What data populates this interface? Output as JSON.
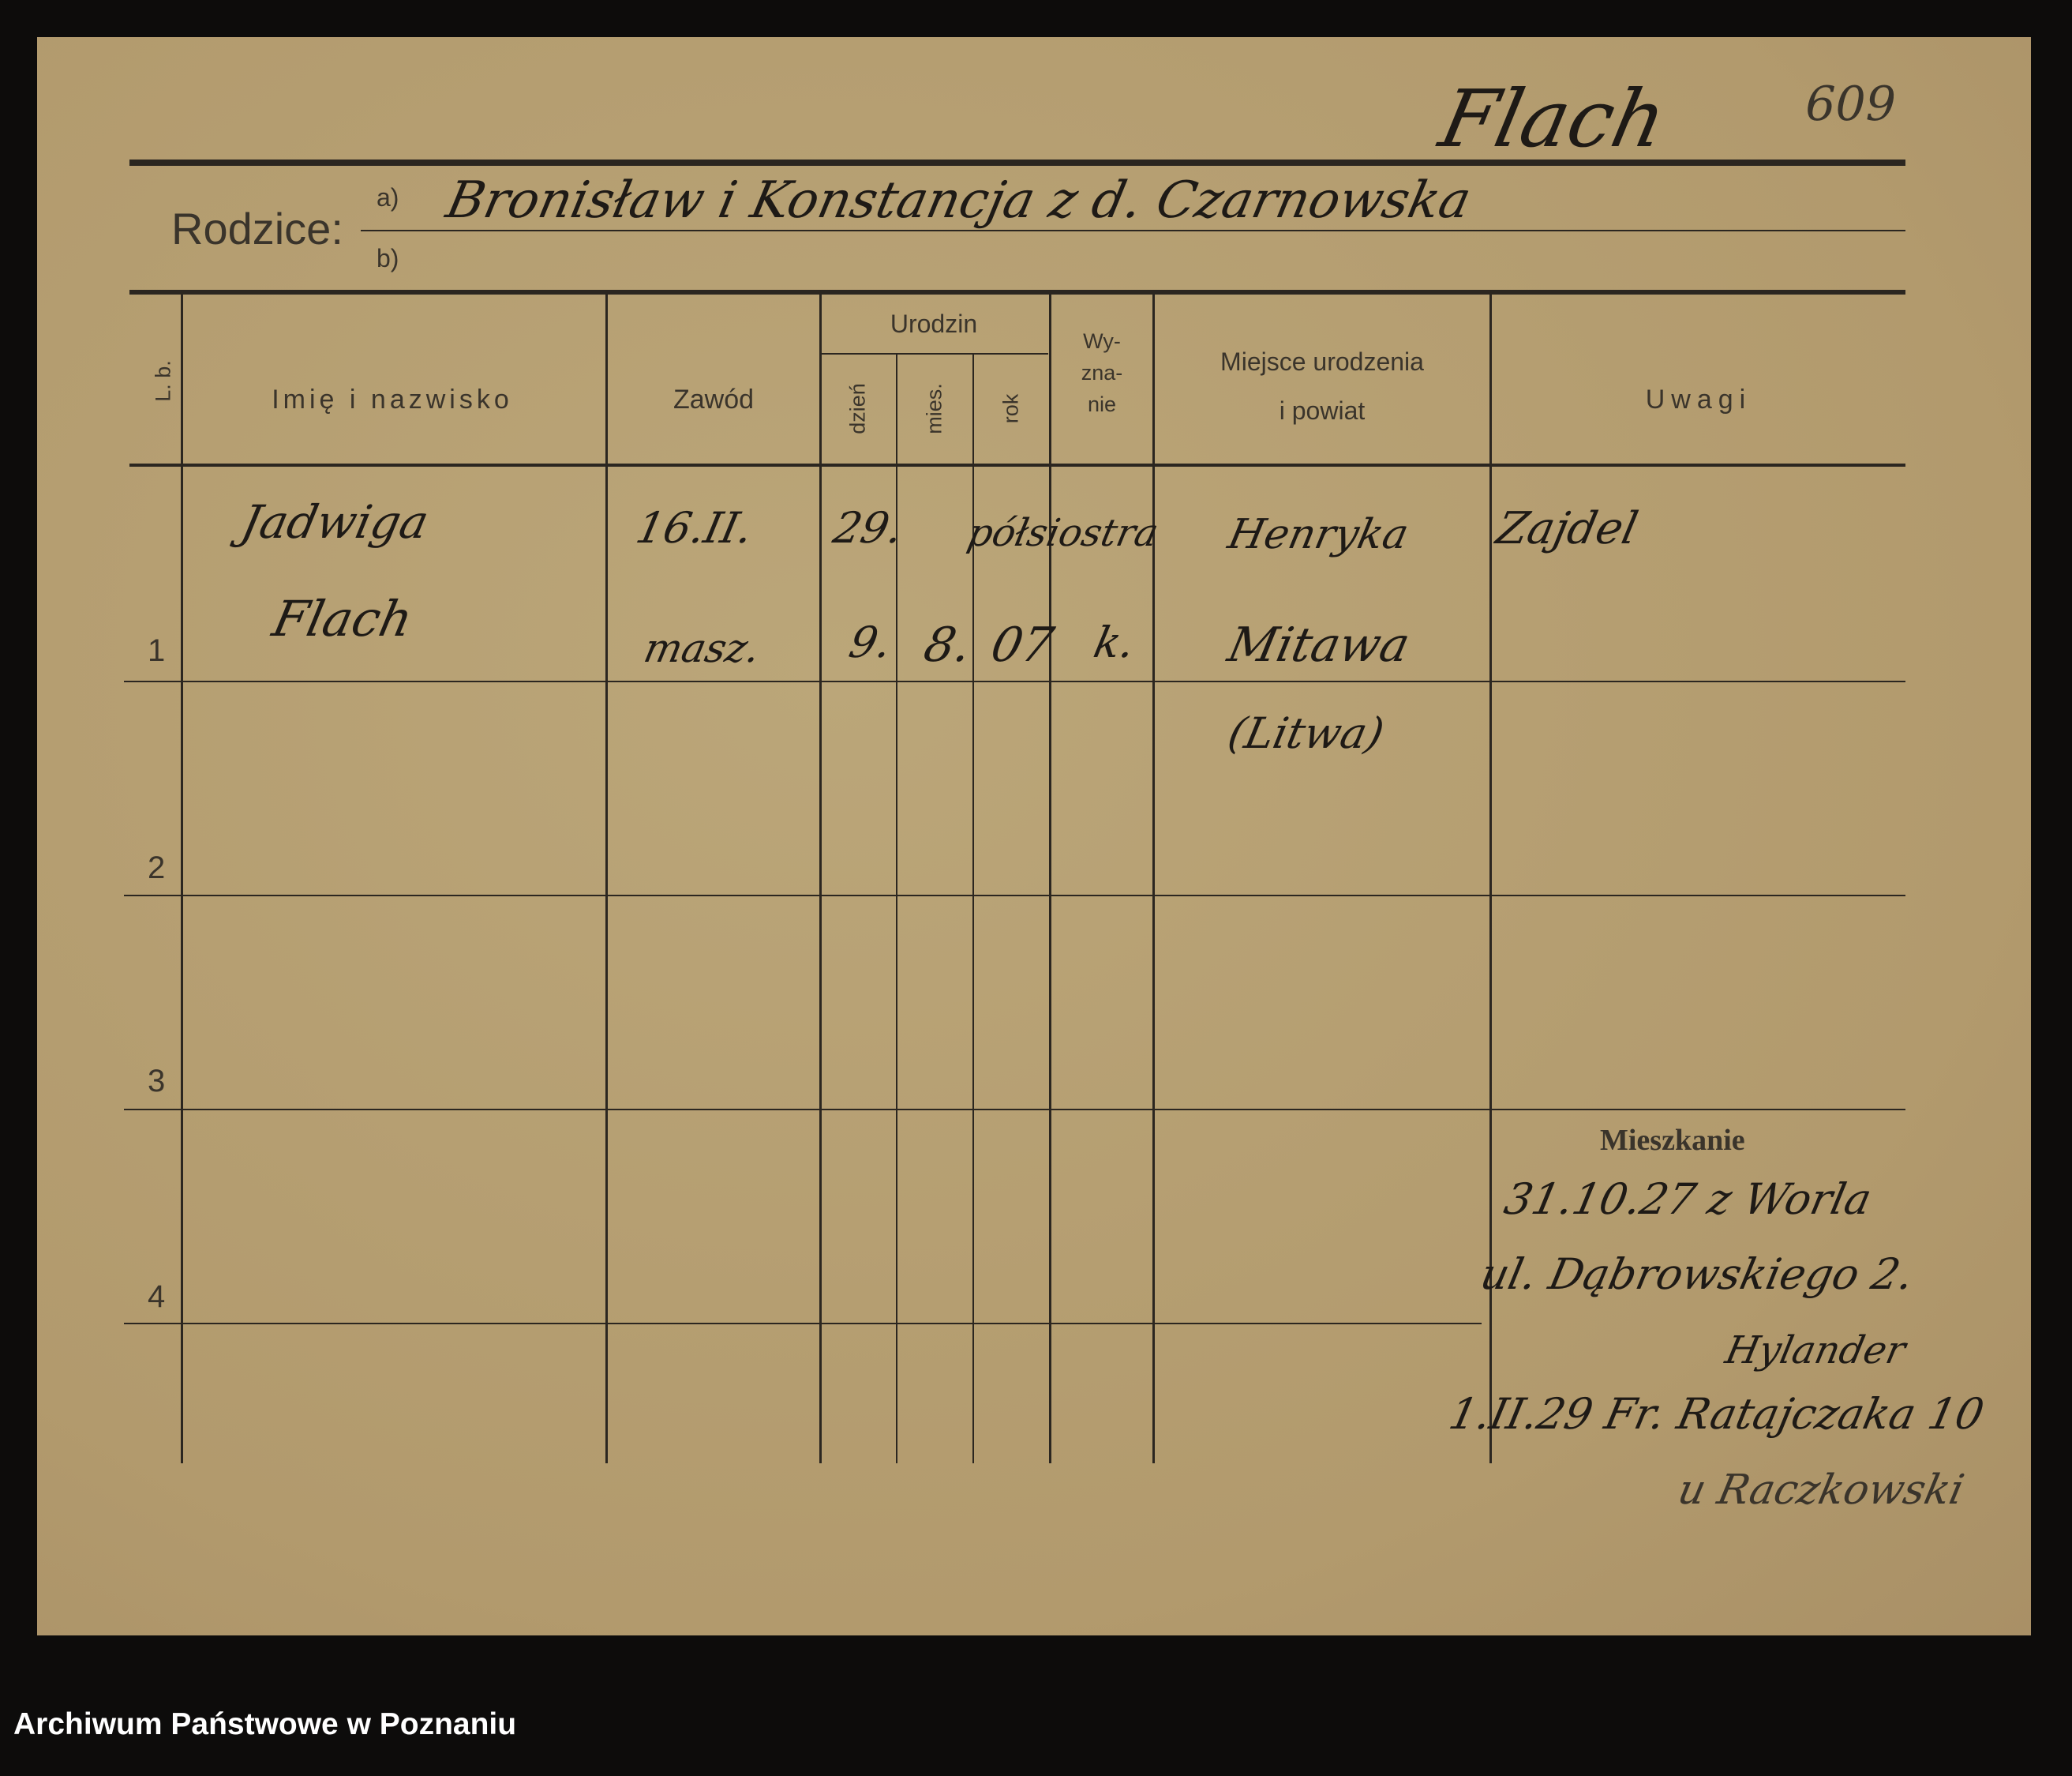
{
  "form": {
    "parents_label": "Rodzice:",
    "parent_a_marker": "a)",
    "parent_b_marker": "b)",
    "headers": {
      "lp": "L. b.",
      "name": "Imię i nazwisko",
      "occupation": "Zawód",
      "birth": "Urodzin",
      "day": "dzień",
      "month": "mies.",
      "year": "rok",
      "religion": "Wy-\nzna-\nnie",
      "religion_lines": [
        "Wy-",
        "zna-",
        "nie"
      ],
      "birthplace_1": "Miejsce urodzenia",
      "birthplace_2": "i powiat",
      "remarks": "Uwagi"
    },
    "row_numbers": [
      "1",
      "2",
      "3",
      "4"
    ],
    "residence_label": "Mieszkanie"
  },
  "handwriting": {
    "surname": "Flach",
    "card_number": "609",
    "parents": "Bronisław i Konstancja z d. Czarnowska",
    "row1": {
      "name_1": "Jadwiga",
      "name_2": "Flach",
      "occupation_1": "16.II.",
      "occupation_2": "masz.",
      "day": "29.",
      "day_2": "9.",
      "month": "8.",
      "year": "07",
      "religion_1": "półsiostra",
      "religion_2": "k.",
      "birthplace_1": "Henryka",
      "birthplace_2": "Mitawa",
      "birthplace_3": "(Litwa)",
      "remarks": "Zajdel"
    },
    "residence": [
      "31.10.27 z Worla",
      "ul. Dąbrowskiego 2.",
      "Hylander",
      "1.II.29 Fr. Ratajczaka 10",
      "u Raczkowski"
    ]
  },
  "footer": {
    "archive": "Archiwum Państwowe w Poznaniu"
  }
}
